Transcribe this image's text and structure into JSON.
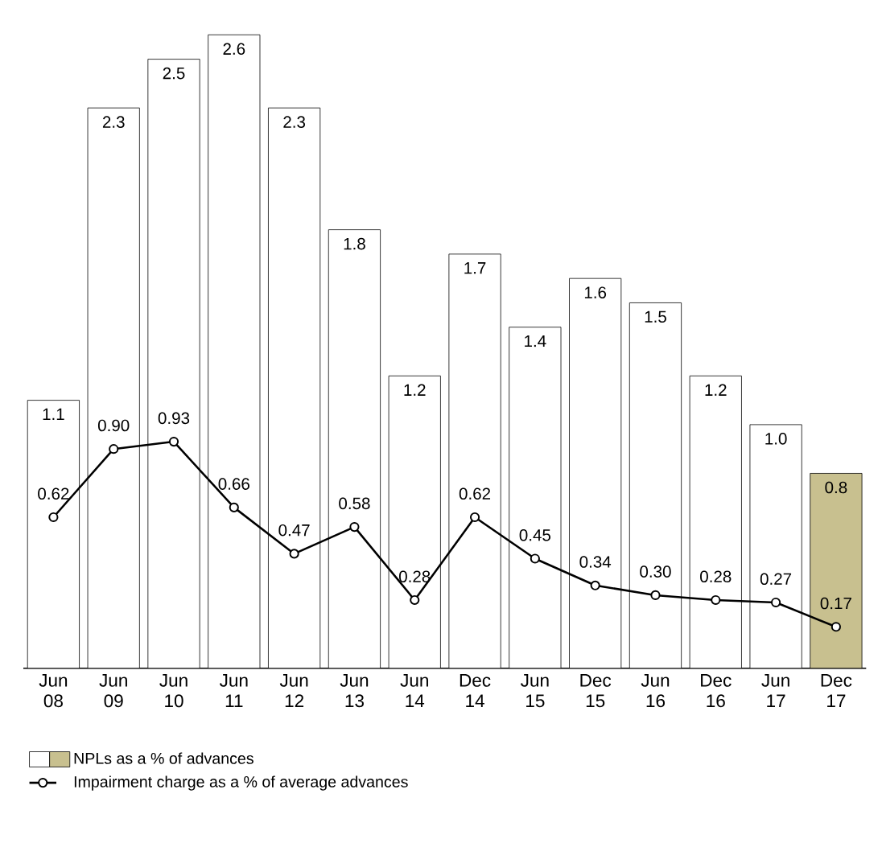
{
  "chart_data": {
    "type": "bar",
    "categories": [
      "Jun 08",
      "Jun 09",
      "Jun 10",
      "Jun 11",
      "Jun 12",
      "Jun 13",
      "Jun 14",
      "Dec 14",
      "Jun 15",
      "Dec 15",
      "Jun 16",
      "Dec 16",
      "Jun 17",
      "Dec 17"
    ],
    "series": [
      {
        "name": "NPLs as a % of advances",
        "value_labels": [
          "1.1",
          "2.3",
          "2.5",
          "2.6",
          "2.3",
          "1.8",
          "1.2",
          "1.7",
          "1.4",
          "1.6",
          "1.5",
          "1.2",
          "1.0",
          "0.8"
        ],
        "colors": [
          "#ffffff",
          "#ffffff",
          "#ffffff",
          "#ffffff",
          "#ffffff",
          "#ffffff",
          "#ffffff",
          "#ffffff",
          "#ffffff",
          "#ffffff",
          "#ffffff",
          "#ffffff",
          "#ffffff",
          "#c8c08f"
        ],
        "values": [
          1.1,
          2.3,
          2.5,
          2.6,
          2.3,
          1.8,
          1.2,
          1.7,
          1.4,
          1.6,
          1.5,
          1.2,
          1.0,
          0.8
        ]
      },
      {
        "name": "Impairment charge as a % of average advances",
        "type": "line",
        "color": "#000000",
        "marker": "circle",
        "value_labels": [
          "0.62",
          "0.90",
          "0.93",
          "0.66",
          "0.47",
          "0.58",
          "0.28",
          "0.62",
          "0.45",
          "0.34",
          "0.30",
          "0.28",
          "0.27",
          "0.17"
        ],
        "values": [
          0.62,
          0.9,
          0.93,
          0.66,
          0.47,
          0.58,
          0.28,
          0.62,
          0.45,
          0.34,
          0.3,
          0.28,
          0.27,
          0.17
        ]
      }
    ],
    "legend": "bottom"
  }
}
